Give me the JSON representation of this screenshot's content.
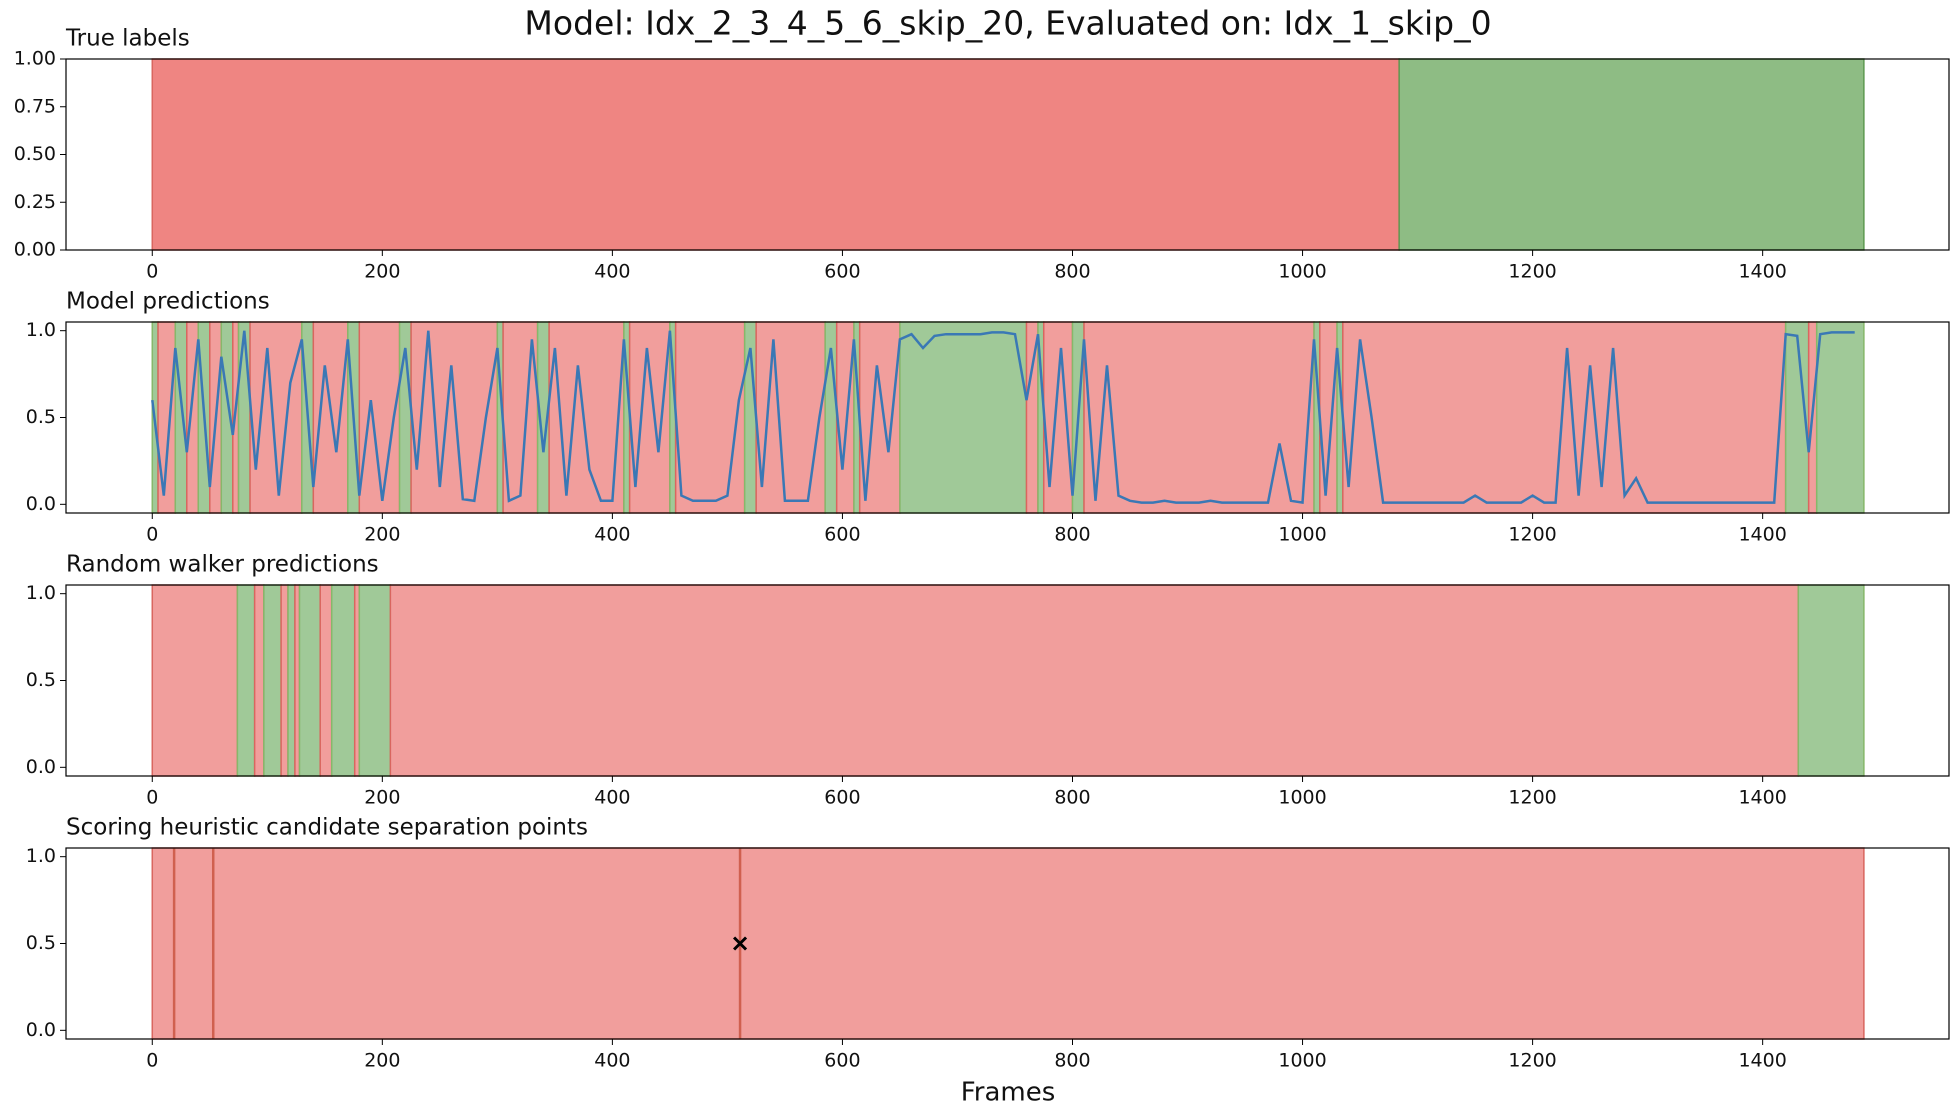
{
  "title": "Model: Idx_2_3_4_5_6_skip_20, Evaluated on: Idx_1_skip_0",
  "xlabel": "Frames",
  "chart_data": [
    {
      "type": "span",
      "title": "True labels",
      "xlim": [
        -75,
        1562
      ],
      "xticks": [
        0,
        200,
        400,
        600,
        800,
        1000,
        1200,
        1400
      ],
      "ylim": [
        0,
        1
      ],
      "yticks": [
        {
          "value": 0,
          "label": "0.00"
        },
        {
          "value": 0.25,
          "label": "0.25"
        },
        {
          "value": 0.5,
          "label": "0.50"
        },
        {
          "value": 0.75,
          "label": "0.75"
        },
        {
          "value": 1,
          "label": "1.00"
        }
      ],
      "class_colors": [
        "#ef8582",
        "#8ebc84"
      ],
      "edge_colors": [
        "#d9665f",
        "#5e9a52"
      ],
      "segments": [
        [
          0,
          1084,
          0
        ],
        [
          1084,
          1488,
          1
        ]
      ]
    },
    {
      "type": "line",
      "title": "Model predictions",
      "xlim": [
        -75,
        1562
      ],
      "xticks": [
        0,
        200,
        400,
        600,
        800,
        1000,
        1200,
        1400
      ],
      "ylim": [
        -0.05,
        1.05
      ],
      "yticks": [
        {
          "value": 0,
          "label": "0.0"
        },
        {
          "value": 0.5,
          "label": "0.5"
        },
        {
          "value": 1,
          "label": "1.0"
        }
      ],
      "class_colors": [
        "#f19e9c",
        "#a0c998"
      ],
      "edge_colors": [
        "#d9665f",
        "#86b86a"
      ],
      "segments": [
        [
          0,
          5,
          1
        ],
        [
          5,
          20,
          0
        ],
        [
          20,
          30,
          1
        ],
        [
          30,
          40,
          0
        ],
        [
          40,
          50,
          1
        ],
        [
          50,
          60,
          0
        ],
        [
          60,
          70,
          1
        ],
        [
          70,
          75,
          0
        ],
        [
          75,
          85,
          1
        ],
        [
          85,
          130,
          0
        ],
        [
          130,
          140,
          1
        ],
        [
          140,
          170,
          0
        ],
        [
          170,
          180,
          1
        ],
        [
          180,
          215,
          0
        ],
        [
          215,
          225,
          1
        ],
        [
          225,
          300,
          0
        ],
        [
          300,
          305,
          1
        ],
        [
          305,
          335,
          0
        ],
        [
          335,
          345,
          1
        ],
        [
          345,
          410,
          0
        ],
        [
          410,
          415,
          1
        ],
        [
          415,
          450,
          0
        ],
        [
          450,
          455,
          1
        ],
        [
          455,
          515,
          0
        ],
        [
          515,
          525,
          1
        ],
        [
          525,
          585,
          0
        ],
        [
          585,
          595,
          1
        ],
        [
          595,
          610,
          0
        ],
        [
          610,
          615,
          1
        ],
        [
          615,
          650,
          0
        ],
        [
          650,
          760,
          1
        ],
        [
          760,
          770,
          0
        ],
        [
          770,
          775,
          1
        ],
        [
          775,
          800,
          0
        ],
        [
          800,
          810,
          1
        ],
        [
          810,
          1010,
          0
        ],
        [
          1010,
          1015,
          1
        ],
        [
          1015,
          1030,
          0
        ],
        [
          1030,
          1035,
          1
        ],
        [
          1035,
          1420,
          0
        ],
        [
          1420,
          1440,
          1
        ],
        [
          1440,
          1447,
          0
        ],
        [
          1447,
          1488,
          1
        ]
      ],
      "series": [
        {
          "color": "#3a78b5",
          "x": [
            0,
            10,
            20,
            30,
            40,
            50,
            60,
            70,
            80,
            90,
            100,
            110,
            120,
            130,
            140,
            150,
            160,
            170,
            180,
            190,
            200,
            210,
            220,
            230,
            240,
            250,
            260,
            270,
            280,
            290,
            300,
            310,
            320,
            330,
            340,
            350,
            360,
            370,
            380,
            390,
            400,
            410,
            420,
            430,
            440,
            450,
            460,
            470,
            480,
            490,
            500,
            510,
            520,
            530,
            540,
            550,
            560,
            570,
            580,
            590,
            600,
            610,
            620,
            630,
            640,
            650,
            660,
            670,
            680,
            690,
            700,
            710,
            720,
            730,
            740,
            750,
            760,
            770,
            780,
            790,
            800,
            810,
            820,
            830,
            840,
            850,
            860,
            870,
            880,
            890,
            900,
            910,
            920,
            930,
            940,
            950,
            960,
            970,
            980,
            990,
            1000,
            1010,
            1020,
            1030,
            1040,
            1050,
            1060,
            1070,
            1080,
            1090,
            1100,
            1110,
            1120,
            1130,
            1140,
            1150,
            1160,
            1170,
            1180,
            1190,
            1200,
            1210,
            1220,
            1230,
            1240,
            1250,
            1260,
            1270,
            1280,
            1290,
            1300,
            1310,
            1320,
            1330,
            1340,
            1350,
            1360,
            1370,
            1380,
            1390,
            1400,
            1410,
            1420,
            1430,
            1440,
            1450,
            1460,
            1470,
            1480
          ],
          "values": [
            0.6,
            0.05,
            0.9,
            0.3,
            0.95,
            0.1,
            0.85,
            0.4,
            1.0,
            0.2,
            0.9,
            0.05,
            0.7,
            0.95,
            0.1,
            0.8,
            0.3,
            0.95,
            0.05,
            0.6,
            0.02,
            0.5,
            0.9,
            0.2,
            1.0,
            0.1,
            0.8,
            0.03,
            0.02,
            0.5,
            0.9,
            0.02,
            0.05,
            0.95,
            0.3,
            0.9,
            0.05,
            0.8,
            0.2,
            0.02,
            0.02,
            0.95,
            0.1,
            0.9,
            0.3,
            1.0,
            0.05,
            0.02,
            0.02,
            0.02,
            0.05,
            0.6,
            0.9,
            0.1,
            0.95,
            0.02,
            0.02,
            0.02,
            0.5,
            0.9,
            0.2,
            0.95,
            0.02,
            0.8,
            0.3,
            0.95,
            0.98,
            0.9,
            0.97,
            0.98,
            0.98,
            0.98,
            0.98,
            0.99,
            0.99,
            0.98,
            0.6,
            0.98,
            0.1,
            0.9,
            0.05,
            0.95,
            0.02,
            0.8,
            0.05,
            0.02,
            0.01,
            0.01,
            0.02,
            0.01,
            0.01,
            0.01,
            0.02,
            0.01,
            0.01,
            0.01,
            0.01,
            0.01,
            0.35,
            0.02,
            0.01,
            0.95,
            0.05,
            0.9,
            0.1,
            0.95,
            0.5,
            0.01,
            0.01,
            0.01,
            0.01,
            0.01,
            0.01,
            0.01,
            0.01,
            0.05,
            0.01,
            0.01,
            0.01,
            0.01,
            0.05,
            0.01,
            0.01,
            0.9,
            0.05,
            0.8,
            0.1,
            0.9,
            0.05,
            0.15,
            0.01,
            0.01,
            0.01,
            0.01,
            0.01,
            0.01,
            0.01,
            0.01,
            0.01,
            0.01,
            0.01,
            0.01,
            0.98,
            0.97,
            0.3,
            0.98,
            0.99,
            0.99,
            0.99
          ]
        }
      ]
    },
    {
      "type": "span",
      "title": "Random walker predictions",
      "xlim": [
        -75,
        1562
      ],
      "xticks": [
        0,
        200,
        400,
        600,
        800,
        1000,
        1200,
        1400
      ],
      "ylim": [
        -0.05,
        1.05
      ],
      "yticks": [
        {
          "value": 0,
          "label": "0.0"
        },
        {
          "value": 0.5,
          "label": "0.5"
        },
        {
          "value": 1,
          "label": "1.0"
        }
      ],
      "class_colors": [
        "#f19e9c",
        "#a0c998"
      ],
      "edge_colors": [
        "#d9665f",
        "#86b86a"
      ],
      "segments": [
        [
          0,
          74,
          0
        ],
        [
          74,
          89,
          1
        ],
        [
          89,
          97,
          0
        ],
        [
          97,
          112,
          1
        ],
        [
          112,
          118,
          0
        ],
        [
          118,
          124,
          1
        ],
        [
          124,
          128,
          0
        ],
        [
          128,
          146,
          1
        ],
        [
          146,
          156,
          0
        ],
        [
          156,
          176,
          1
        ],
        [
          176,
          180,
          0
        ],
        [
          180,
          207,
          1
        ],
        [
          207,
          1431,
          0
        ],
        [
          1431,
          1488,
          1
        ]
      ]
    },
    {
      "type": "span",
      "title": "Scoring heuristic candidate separation points",
      "xlim": [
        -75,
        1562
      ],
      "xticks": [
        0,
        200,
        400,
        600,
        800,
        1000,
        1200,
        1400
      ],
      "ylim": [
        -0.05,
        1.05
      ],
      "yticks": [
        {
          "value": 0,
          "label": "0.0"
        },
        {
          "value": 0.5,
          "label": "0.5"
        },
        {
          "value": 1,
          "label": "1.0"
        }
      ],
      "class_colors": [
        "#f19e9c",
        "#a0c998"
      ],
      "edge_colors": [
        "#d9665f",
        "#86b86a"
      ],
      "segments": [
        [
          0,
          1488,
          0
        ]
      ],
      "candidates": [
        19,
        53,
        511
      ],
      "candidate_color": "#d0604f",
      "marker": {
        "x": 511,
        "y": 0.5,
        "color": "#000000"
      }
    }
  ]
}
